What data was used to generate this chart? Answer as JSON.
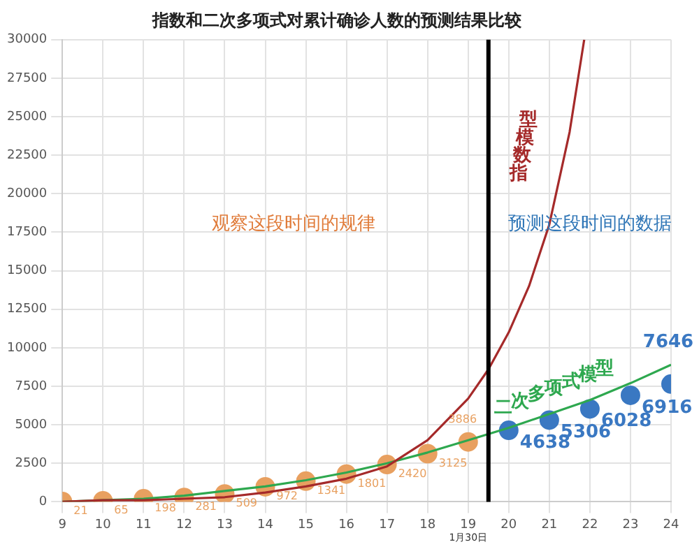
{
  "chart_data": {
    "type": "scatter",
    "title": "指数和二次多项式对累计确诊人数的预测结果比较",
    "xlim": [
      9,
      24
    ],
    "xticks": [
      9,
      10,
      11,
      12,
      13,
      14,
      15,
      16,
      17,
      18,
      19,
      20,
      21,
      22,
      23,
      24
    ],
    "ylim": [
      0,
      30000
    ],
    "yticks": [
      0,
      2500,
      5000,
      7500,
      10000,
      12500,
      15000,
      17500,
      20000,
      22500,
      25000,
      27500,
      30000
    ],
    "grid": true,
    "marker": "circle",
    "series": [
      {
        "type": "line",
        "name": "指数模型",
        "color": "#a52a2a",
        "marker": "none",
        "x": [
          9,
          10,
          11,
          12,
          13,
          14,
          15,
          16,
          17,
          18,
          19,
          19.5,
          20,
          20.5,
          21,
          21.5,
          21.86
        ],
        "values": [
          0,
          100,
          100,
          200,
          300,
          600,
          1000,
          1500,
          2300,
          4000,
          6700,
          8600,
          11000,
          14000,
          18000,
          24000,
          30000
        ]
      },
      {
        "type": "line",
        "name": "二次多项式模型",
        "color": "#2ea84f",
        "marker": "none",
        "x": [
          9,
          10,
          11,
          12,
          13,
          14,
          15,
          16,
          17,
          18,
          19,
          20,
          21,
          22,
          23,
          24
        ],
        "values": [
          0,
          100,
          200,
          400,
          700,
          1000,
          1400,
          1900,
          2500,
          3200,
          4000,
          4800,
          5700,
          6600,
          7700,
          8900
        ]
      },
      {
        "type": "scatter",
        "color": "#e8a060",
        "x": [
          9,
          10,
          11,
          12,
          13,
          14,
          15,
          16,
          17,
          18,
          19
        ],
        "values": [
          21,
          65,
          198,
          281,
          509,
          972,
          1341,
          1801,
          2420,
          3125,
          3886
        ],
        "value_labels": [
          "21",
          "65",
          "198",
          "281",
          "509",
          "972",
          "1341",
          "1801",
          "2420",
          "3125",
          "3886"
        ]
      },
      {
        "type": "scatter",
        "color": "#3a78c2",
        "x": [
          20,
          21,
          22,
          23,
          24
        ],
        "values": [
          4638,
          5306,
          6028,
          6916,
          7646
        ],
        "value_labels": [
          "4638",
          "5306",
          "6028",
          "6916",
          "7646"
        ]
      }
    ],
    "ref_lines": [
      {
        "axis": "x",
        "value": 19.5,
        "color": "#000000"
      }
    ],
    "annotations": [
      "观察这段时间的规律",
      "预测这段时间的数据",
      "1月30日"
    ]
  }
}
